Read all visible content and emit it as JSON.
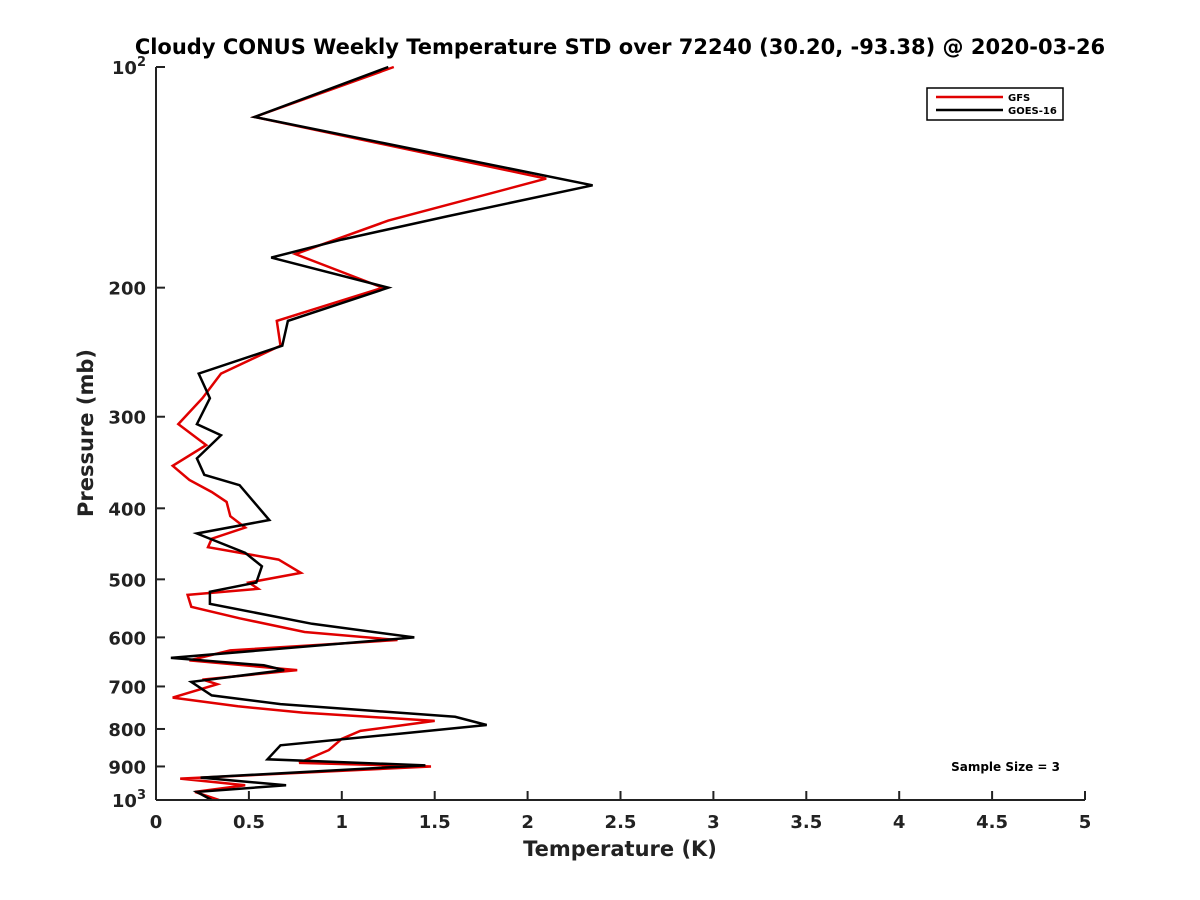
{
  "chart_data": {
    "type": "line",
    "title": "Cloudy CONUS Weekly Temperature STD over 72240 (30.20, -93.38) @ 2020-03-26",
    "xlabel": "Temperature (K)",
    "ylabel": "Pressure (mb)",
    "xlim": [
      0,
      5
    ],
    "ylim": [
      100,
      1000
    ],
    "y_scale": "log",
    "y_reversed": true,
    "x_ticks": [
      0,
      0.5,
      1,
      1.5,
      2,
      2.5,
      3,
      3.5,
      4,
      4.5,
      5
    ],
    "x_tick_labels": [
      "0",
      "0.5",
      "1",
      "1.5",
      "2",
      "2.5",
      "3",
      "3.5",
      "4",
      "4.5",
      "5"
    ],
    "y_ticks_plain": [
      200,
      300,
      400,
      500,
      600,
      700,
      800,
      900
    ],
    "y_tick_labels_plain": [
      "200",
      "300",
      "400",
      "500",
      "600",
      "700",
      "800",
      "900"
    ],
    "y_ticks_power": [
      {
        "value": 100,
        "base": "10",
        "exp": "2"
      },
      {
        "value": 1000,
        "base": "10",
        "exp": "3"
      }
    ],
    "legend": {
      "location": "top-right"
    },
    "annotation": "Sample Size = 3",
    "series": [
      {
        "name": "GFS",
        "color": "#e00000",
        "points": [
          [
            1.28,
            100
          ],
          [
            0.53,
            117
          ],
          [
            2.1,
            142
          ],
          [
            1.25,
            162
          ],
          [
            0.75,
            180
          ],
          [
            1.22,
            200
          ],
          [
            0.65,
            222
          ],
          [
            0.67,
            240
          ],
          [
            0.35,
            262
          ],
          [
            0.25,
            283
          ],
          [
            0.12,
            307
          ],
          [
            0.27,
            328
          ],
          [
            0.09,
            350
          ],
          [
            0.18,
            366
          ],
          [
            0.3,
            380
          ],
          [
            0.38,
            392
          ],
          [
            0.4,
            410
          ],
          [
            0.48,
            425
          ],
          [
            0.3,
            440
          ],
          [
            0.28,
            452
          ],
          [
            0.66,
            470
          ],
          [
            0.78,
            490
          ],
          [
            0.5,
            505
          ],
          [
            0.55,
            515
          ],
          [
            0.17,
            525
          ],
          [
            0.19,
            545
          ],
          [
            0.45,
            565
          ],
          [
            0.8,
            590
          ],
          [
            1.3,
            605
          ],
          [
            0.4,
            625
          ],
          [
            0.18,
            645
          ],
          [
            0.76,
            665
          ],
          [
            0.25,
            685
          ],
          [
            0.33,
            695
          ],
          [
            0.09,
            725
          ],
          [
            0.44,
            745
          ],
          [
            0.79,
            760
          ],
          [
            1.5,
            780
          ],
          [
            1.1,
            805
          ],
          [
            1.0,
            825
          ],
          [
            0.93,
            855
          ],
          [
            0.77,
            890
          ],
          [
            1.48,
            900
          ],
          [
            0.13,
            935
          ],
          [
            0.48,
            955
          ],
          [
            0.21,
            975
          ],
          [
            0.34,
            1000
          ]
        ]
      },
      {
        "name": "GOES-16",
        "color": "#000000",
        "points": [
          [
            1.25,
            100
          ],
          [
            0.53,
            117
          ],
          [
            2.35,
            145
          ],
          [
            1.56,
            160
          ],
          [
            1.0,
            172
          ],
          [
            0.62,
            182
          ],
          [
            1.25,
            200
          ],
          [
            0.71,
            222
          ],
          [
            0.68,
            240
          ],
          [
            0.23,
            262
          ],
          [
            0.29,
            283
          ],
          [
            0.22,
            307
          ],
          [
            0.35,
            318
          ],
          [
            0.22,
            342
          ],
          [
            0.26,
            360
          ],
          [
            0.45,
            372
          ],
          [
            0.53,
            393
          ],
          [
            0.61,
            415
          ],
          [
            0.22,
            433
          ],
          [
            0.48,
            460
          ],
          [
            0.57,
            480
          ],
          [
            0.54,
            505
          ],
          [
            0.29,
            520
          ],
          [
            0.29,
            540
          ],
          [
            0.84,
            575
          ],
          [
            1.39,
            600
          ],
          [
            0.08,
            640
          ],
          [
            0.58,
            655
          ],
          [
            0.69,
            665
          ],
          [
            0.19,
            690
          ],
          [
            0.3,
            720
          ],
          [
            0.67,
            740
          ],
          [
            1.61,
            770
          ],
          [
            1.78,
            790
          ],
          [
            1.31,
            812
          ],
          [
            0.67,
            842
          ],
          [
            0.6,
            880
          ],
          [
            1.45,
            897
          ],
          [
            0.24,
            932
          ],
          [
            0.7,
            955
          ],
          [
            0.22,
            975
          ],
          [
            0.3,
            1000
          ]
        ]
      }
    ]
  }
}
